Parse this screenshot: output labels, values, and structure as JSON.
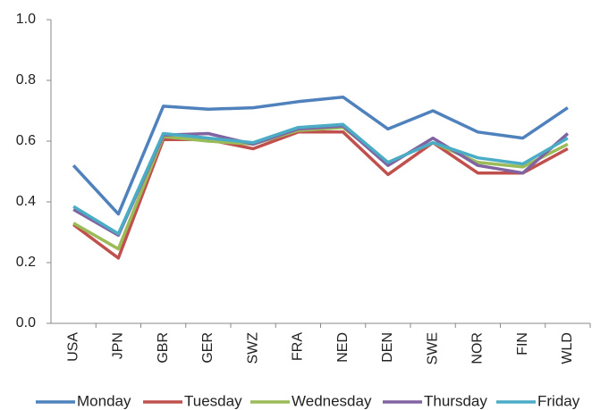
{
  "chart_data": {
    "type": "line",
    "categories": [
      "USA",
      "JPN",
      "GBR",
      "GER",
      "SWZ",
      "FRA",
      "NED",
      "DEN",
      "SWE",
      "NOR",
      "FIN",
      "WLD"
    ],
    "series": [
      {
        "name": "Monday",
        "color": "#4f81bd",
        "values": [
          0.52,
          0.36,
          0.715,
          0.705,
          0.71,
          0.73,
          0.745,
          0.64,
          0.7,
          0.63,
          0.61,
          0.71
        ]
      },
      {
        "name": "Tuesday",
        "color": "#c0504d",
        "values": [
          0.325,
          0.215,
          0.605,
          0.605,
          0.575,
          0.63,
          0.63,
          0.49,
          0.595,
          0.495,
          0.495,
          0.575
        ]
      },
      {
        "name": "Wednesday",
        "color": "#9bbb59",
        "values": [
          0.33,
          0.245,
          0.615,
          0.6,
          0.59,
          0.635,
          0.645,
          0.53,
          0.595,
          0.53,
          0.515,
          0.59
        ]
      },
      {
        "name": "Thursday",
        "color": "#8064a2",
        "values": [
          0.375,
          0.29,
          0.62,
          0.625,
          0.59,
          0.64,
          0.65,
          0.52,
          0.61,
          0.52,
          0.495,
          0.625
        ]
      },
      {
        "name": "Friday",
        "color": "#4bacc6",
        "values": [
          0.385,
          0.295,
          0.625,
          0.61,
          0.595,
          0.645,
          0.655,
          0.53,
          0.595,
          0.545,
          0.525,
          0.61
        ]
      }
    ],
    "ylim": [
      0,
      1
    ],
    "yticks": [
      {
        "value": 0,
        "label": "0.0"
      },
      0.2,
      0.4,
      0.6,
      0.8,
      {
        "value": 1,
        "label": "1.0"
      }
    ],
    "grid": false,
    "legend": "bottom"
  }
}
